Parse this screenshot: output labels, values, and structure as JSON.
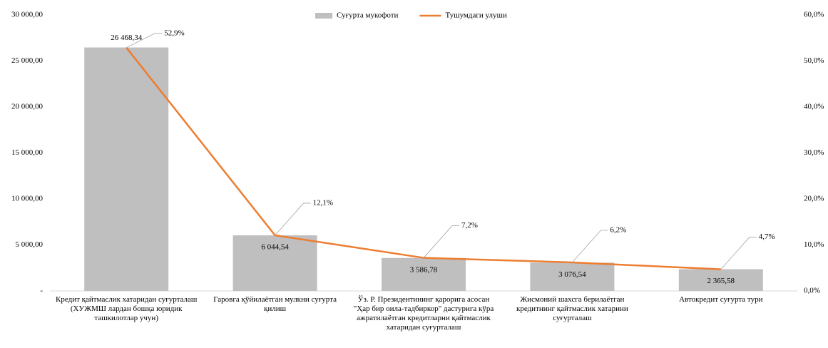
{
  "chart_data": {
    "type": "combo",
    "categories": [
      "Кредит қайтмаслик хатаридан суғурталаш (ХУЖМШ лардан бошқа юридик ташкилотлар учун)",
      "Гаровга қўйилаётган мулкни суғурта қилиш",
      "Ўз. Р. Президентининг қарорига асосан \"Ҳар бир оила-тадбиркор\" дастурига кўра ажратилаётган кредитларни қайтмаслик хатаридан суғурталаш",
      "Жисмоний шахсга берилаётган кредитнинг қайтмаслик хатарини суғурталаш",
      "Автокредит суғурта тури"
    ],
    "series": [
      {
        "name": "Суғурта мукофоти",
        "type": "bar",
        "color": "#bfbfbf",
        "values": [
          26468.34,
          6044.54,
          3586.78,
          3076.54,
          2365.58
        ],
        "value_labels": [
          "26 468,34",
          "6 044,54",
          "3 586,78",
          "3 076,54",
          "2 365,58"
        ]
      },
      {
        "name": "Тушумдаги улуши",
        "type": "line",
        "axis": "y2",
        "color": "#ed7d31",
        "values": [
          52.9,
          12.1,
          7.2,
          6.2,
          4.7
        ],
        "value_labels": [
          "52,9%",
          "12,1%",
          "7,2%",
          "6,2%",
          "4,7%"
        ]
      }
    ],
    "ylim": [
      0,
      30000
    ],
    "yticks": [
      {
        "value": 0,
        "label": "-"
      },
      {
        "value": 5000,
        "label": "5 000,00"
      },
      {
        "value": 10000,
        "label": "10 000,00"
      },
      {
        "value": 15000,
        "label": "15 000,00"
      },
      {
        "value": 20000,
        "label": "20 000,00"
      },
      {
        "value": 25000,
        "label": "25 000,00"
      },
      {
        "value": 30000,
        "label": "30 000,00"
      }
    ],
    "y2lim": [
      0,
      60
    ],
    "y2ticks": [
      {
        "value": 0,
        "label": "0,0%"
      },
      {
        "value": 10,
        "label": "10,0%"
      },
      {
        "value": 20,
        "label": "20,0%"
      },
      {
        "value": 30,
        "label": "30,0%"
      },
      {
        "value": 40,
        "label": "40,0%"
      },
      {
        "value": 50,
        "label": "50,0%"
      },
      {
        "value": 60,
        "label": "60,0%"
      }
    ],
    "legend": "top"
  }
}
